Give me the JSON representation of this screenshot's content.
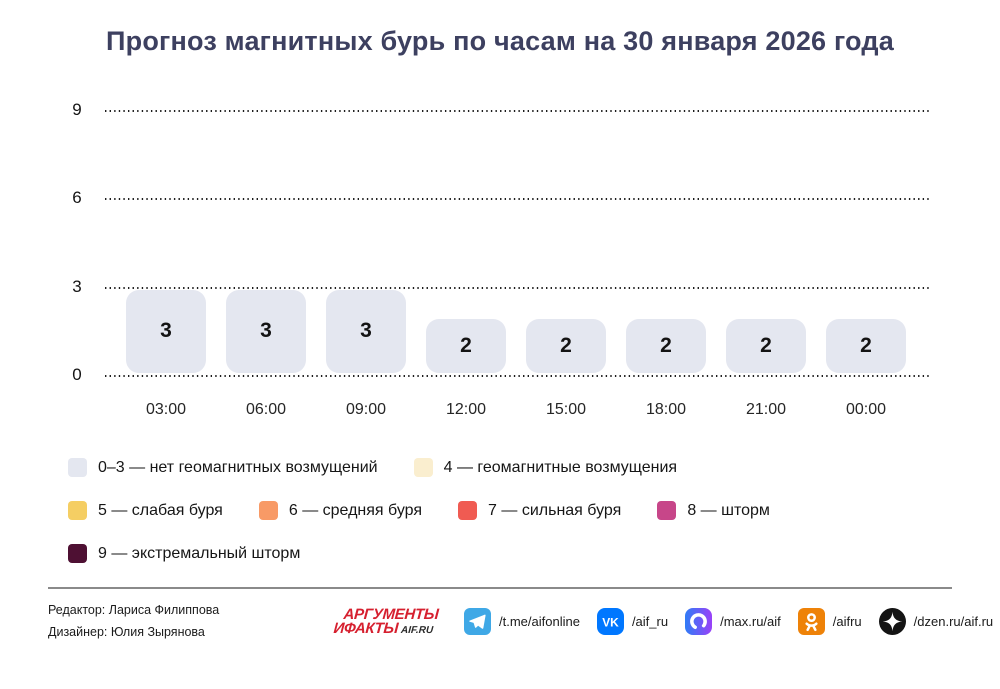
{
  "title": "Прогноз магнитных бурь по часам на 30 января 2026 года",
  "chart_data": {
    "type": "bar",
    "title": "Прогноз магнитных бурь по часам на 30 января 2026 года",
    "categories": [
      "03:00",
      "06:00",
      "09:00",
      "12:00",
      "15:00",
      "18:00",
      "21:00",
      "00:00"
    ],
    "values": [
      3,
      3,
      3,
      2,
      2,
      2,
      2,
      2
    ],
    "xlabel": "",
    "ylabel": "",
    "ylim": [
      0,
      9
    ],
    "yticks": [
      0,
      3,
      6,
      9
    ],
    "grid": "horizontal-dotted",
    "legend_position": "bottom",
    "bar_color": "#e4e7f0"
  },
  "legend": {
    "items": [
      {
        "label": "0–3 — нет геомагнитных возмущений",
        "color": "#e4e7f0",
        "row": 1
      },
      {
        "label": "4 — геомагнитные возмущения",
        "color": "#faeecf",
        "row": 1
      },
      {
        "label": "5 — слабая буря",
        "color": "#f5ce63",
        "row": 2
      },
      {
        "label": "6 — средняя буря",
        "color": "#f89a66",
        "row": 2
      },
      {
        "label": "7 — сильная буря",
        "color": "#f05b52",
        "row": 2
      },
      {
        "label": "8 — шторм",
        "color": "#c74689",
        "row": 2
      },
      {
        "label": "9 — экстремальный шторм",
        "color": "#4e1033",
        "row": 3
      }
    ]
  },
  "footer": {
    "credits": [
      "Редактор: Лариса Филиппова",
      "Дизайнер: Юлия Зырянова"
    ],
    "logo": {
      "line1": "АРГУМЕНТЫ",
      "line2": "ИФАКТЫ",
      "suffix": "AIF.RU",
      "color": "#d6202f"
    },
    "socials": [
      {
        "icon": "telegram-icon",
        "label": "/t.me/aifonline",
        "color": "#3fa8e6"
      },
      {
        "icon": "vk-icon",
        "label": "/aif_ru",
        "color": "#0077ff"
      },
      {
        "icon": "max-icon",
        "label": "/max.ru/aif",
        "color": [
          "#2f7cf6",
          "#9a41f8"
        ]
      },
      {
        "icon": "ok-icon",
        "label": "/aifru",
        "color": "#ee8208"
      },
      {
        "icon": "dzen-icon",
        "label": "/dzen.ru/aif.ru",
        "color": "#141414"
      }
    ]
  }
}
